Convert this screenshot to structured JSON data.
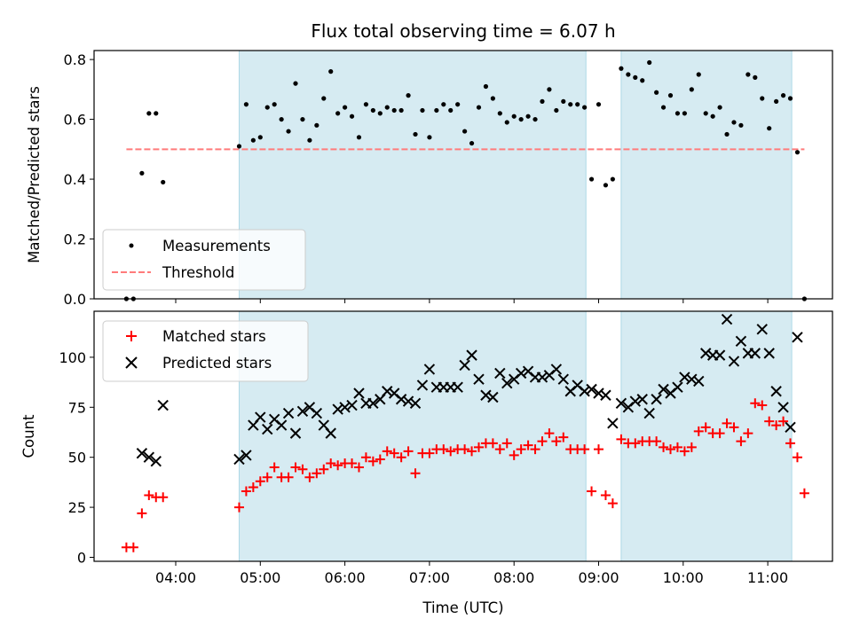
{
  "chart_data": [
    {
      "type": "scatter",
      "title": "Flux total observing time = 6.07 h",
      "xlabel": "",
      "ylabel": "Matched/Predicted stars",
      "ylim": [
        0,
        0.83
      ],
      "yticks": [
        "0.0",
        "0.2",
        "0.4",
        "0.6",
        "0.8"
      ],
      "grid": false,
      "legend_placement": "lower-left",
      "observing_windows_utc": [
        [
          "04:45",
          "08:51"
        ],
        [
          "09:16",
          "11:17"
        ]
      ],
      "series": [
        {
          "name": "Measurements",
          "color": "#000000",
          "marker": "dot",
          "x": [
            "03:25",
            "03:30",
            "03:36",
            "03:41",
            "03:46",
            "03:51",
            "04:45",
            "04:50",
            "04:55",
            "05:00",
            "05:05",
            "05:10",
            "05:15",
            "05:20",
            "05:25",
            "05:30",
            "05:35",
            "05:40",
            "05:45",
            "05:50",
            "05:55",
            "06:00",
            "06:05",
            "06:10",
            "06:15",
            "06:20",
            "06:25",
            "06:30",
            "06:35",
            "06:40",
            "06:45",
            "06:50",
            "06:55",
            "07:00",
            "07:05",
            "07:10",
            "07:15",
            "07:20",
            "07:25",
            "07:30",
            "07:35",
            "07:40",
            "07:45",
            "07:50",
            "07:55",
            "08:00",
            "08:05",
            "08:10",
            "08:15",
            "08:20",
            "08:25",
            "08:30",
            "08:35",
            "08:40",
            "08:45",
            "08:50",
            "08:55",
            "09:00",
            "09:05",
            "09:10",
            "09:16",
            "09:21",
            "09:26",
            "09:31",
            "09:36",
            "09:41",
            "09:46",
            "09:51",
            "09:56",
            "10:01",
            "10:06",
            "10:11",
            "10:16",
            "10:21",
            "10:26",
            "10:31",
            "10:36",
            "10:41",
            "10:46",
            "10:51",
            "10:56",
            "11:01",
            "11:06",
            "11:11",
            "11:16",
            "11:21",
            "11:26"
          ],
          "y": [
            0.0,
            0.0,
            0.42,
            0.62,
            0.62,
            0.39,
            0.51,
            0.65,
            0.53,
            0.54,
            0.64,
            0.65,
            0.6,
            0.56,
            0.72,
            0.6,
            0.53,
            0.58,
            0.67,
            0.76,
            0.62,
            0.64,
            0.61,
            0.54,
            0.65,
            0.63,
            0.62,
            0.64,
            0.63,
            0.63,
            0.68,
            0.55,
            0.63,
            0.54,
            0.63,
            0.65,
            0.63,
            0.65,
            0.56,
            0.52,
            0.64,
            0.71,
            0.67,
            0.62,
            0.59,
            0.61,
            0.6,
            0.61,
            0.6,
            0.66,
            0.7,
            0.63,
            0.66,
            0.65,
            0.65,
            0.64,
            0.4,
            0.65,
            0.38,
            0.4,
            0.77,
            0.75,
            0.74,
            0.73,
            0.79,
            0.69,
            0.64,
            0.68,
            0.62,
            0.62,
            0.7,
            0.75,
            0.62,
            0.61,
            0.64,
            0.55,
            0.59,
            0.58,
            0.75,
            0.74,
            0.67,
            0.57,
            0.66,
            0.68,
            0.67,
            0.49,
            0.0
          ]
        },
        {
          "name": "Threshold",
          "color": "#ff7b7b",
          "style": "dashed",
          "x": [
            "03:25",
            "11:26"
          ],
          "y": [
            0.5,
            0.5
          ]
        }
      ]
    },
    {
      "type": "scatter",
      "title": "",
      "xlabel": "Time (UTC)",
      "ylabel": "Count",
      "ylim": [
        -2,
        123
      ],
      "yticks": [
        "0",
        "25",
        "50",
        "75",
        "100"
      ],
      "xticks": [
        "04:00",
        "05:00",
        "06:00",
        "07:00",
        "08:00",
        "09:00",
        "10:00",
        "11:00"
      ],
      "grid": false,
      "legend_placement": "top-left",
      "series": [
        {
          "name": "Matched stars",
          "color": "#ff0000",
          "marker": "plus",
          "x": [
            "03:25",
            "03:30",
            "03:36",
            "03:41",
            "03:46",
            "03:51",
            "04:45",
            "04:50",
            "04:55",
            "05:00",
            "05:05",
            "05:10",
            "05:15",
            "05:20",
            "05:25",
            "05:30",
            "05:35",
            "05:40",
            "05:45",
            "05:50",
            "05:55",
            "06:00",
            "06:05",
            "06:10",
            "06:15",
            "06:20",
            "06:25",
            "06:30",
            "06:35",
            "06:40",
            "06:45",
            "06:50",
            "06:55",
            "07:00",
            "07:05",
            "07:10",
            "07:15",
            "07:20",
            "07:25",
            "07:30",
            "07:35",
            "07:40",
            "07:45",
            "07:50",
            "07:55",
            "08:00",
            "08:05",
            "08:10",
            "08:15",
            "08:20",
            "08:25",
            "08:30",
            "08:35",
            "08:40",
            "08:45",
            "08:50",
            "08:55",
            "09:00",
            "09:05",
            "09:10",
            "09:16",
            "09:21",
            "09:26",
            "09:31",
            "09:36",
            "09:41",
            "09:46",
            "09:51",
            "09:56",
            "10:01",
            "10:06",
            "10:11",
            "10:16",
            "10:21",
            "10:26",
            "10:31",
            "10:36",
            "10:41",
            "10:46",
            "10:51",
            "10:56",
            "11:01",
            "11:06",
            "11:11",
            "11:16",
            "11:21",
            "11:26"
          ],
          "y": [
            5,
            5,
            22,
            31,
            30,
            30,
            25,
            33,
            35,
            38,
            40,
            45,
            40,
            40,
            45,
            44,
            40,
            42,
            44,
            47,
            46,
            47,
            47,
            45,
            50,
            48,
            49,
            53,
            52,
            50,
            53,
            42,
            52,
            52,
            54,
            54,
            53,
            54,
            54,
            53,
            55,
            57,
            57,
            54,
            57,
            51,
            54,
            56,
            54,
            58,
            62,
            58,
            60,
            54,
            54,
            54,
            33,
            54,
            31,
            27,
            59,
            57,
            57,
            58,
            58,
            58,
            55,
            54,
            55,
            53,
            55,
            63,
            65,
            62,
            62,
            67,
            65,
            58,
            62,
            77,
            76,
            68,
            66,
            68,
            57,
            50,
            32
          ]
        },
        {
          "name": "Predicted stars",
          "color": "#000000",
          "marker": "x",
          "x": [
            "03:36",
            "03:41",
            "03:46",
            "03:51",
            "04:45",
            "04:50",
            "04:55",
            "05:00",
            "05:05",
            "05:10",
            "05:15",
            "05:20",
            "05:25",
            "05:30",
            "05:35",
            "05:40",
            "05:45",
            "05:50",
            "05:55",
            "06:00",
            "06:05",
            "06:10",
            "06:15",
            "06:20",
            "06:25",
            "06:30",
            "06:35",
            "06:40",
            "06:45",
            "06:50",
            "06:55",
            "07:00",
            "07:05",
            "07:10",
            "07:15",
            "07:20",
            "07:25",
            "07:30",
            "07:35",
            "07:40",
            "07:45",
            "07:50",
            "07:55",
            "08:00",
            "08:05",
            "08:10",
            "08:15",
            "08:20",
            "08:25",
            "08:30",
            "08:35",
            "08:40",
            "08:45",
            "08:50",
            "08:55",
            "09:00",
            "09:05",
            "09:10",
            "09:16",
            "09:21",
            "09:26",
            "09:31",
            "09:36",
            "09:41",
            "09:46",
            "09:51",
            "09:56",
            "10:01",
            "10:06",
            "10:11",
            "10:16",
            "10:21",
            "10:26",
            "10:31",
            "10:36",
            "10:41",
            "10:46",
            "10:51",
            "10:56",
            "11:01",
            "11:06",
            "11:11",
            "11:16",
            "11:21"
          ],
          "y": [
            52,
            50,
            48,
            76,
            49,
            51,
            66,
            70,
            64,
            69,
            66,
            72,
            62,
            73,
            75,
            72,
            66,
            62,
            74,
            75,
            76,
            82,
            77,
            77,
            79,
            83,
            82,
            79,
            78,
            77,
            86,
            94,
            85,
            85,
            85,
            85,
            96,
            101,
            89,
            81,
            80,
            92,
            87,
            89,
            92,
            93,
            90,
            90,
            91,
            94,
            89,
            83,
            86,
            83,
            84,
            82,
            81,
            67,
            77,
            75,
            78,
            79,
            72,
            79,
            84,
            82,
            85,
            90,
            89,
            88,
            102,
            101,
            101,
            119,
            98,
            108,
            102,
            102,
            114,
            102,
            83,
            75,
            65,
            110
          ]
        }
      ]
    }
  ]
}
